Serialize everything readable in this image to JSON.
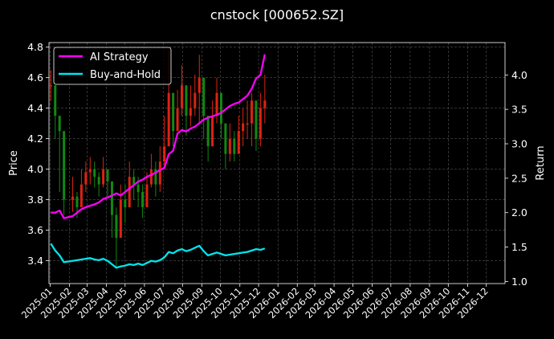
{
  "chart_data": {
    "type": "line",
    "title": "cnstock [000652.SZ]",
    "ylabel_left": "Price",
    "ylabel_right": "Return",
    "x_ticks": [
      "2025-01",
      "2025-02",
      "2025-03",
      "2025-04",
      "2025-05",
      "2025-06",
      "2025-07",
      "2025-08",
      "2025-09",
      "2025-10",
      "2025-11",
      "2025-12",
      "2026-01",
      "2026-02",
      "2026-03",
      "2026-04",
      "2026-05",
      "2026-06",
      "2026-07",
      "2026-08",
      "2026-09",
      "2026-10",
      "2026-11",
      "2026-12"
    ],
    "xlim": [
      "2024-12-30",
      "2026-12-31"
    ],
    "y_left_ticks": [
      3.4,
      3.6,
      3.8,
      4.0,
      4.2,
      4.4,
      4.6,
      4.8
    ],
    "y_left_range": [
      3.25,
      4.83
    ],
    "y_right_ticks": [
      1.0,
      1.5,
      2.0,
      2.5,
      3.0,
      3.5,
      4.0
    ],
    "y_right_range": [
      0.97,
      4.47
    ],
    "grid": true,
    "legend_position": "upper-left",
    "candlestick_colors": {
      "up": "#dd2211",
      "down": "#118811"
    },
    "candlesticks": {
      "dates": [
        "2025-01-02",
        "2025-01-09",
        "2025-01-16",
        "2025-01-23",
        "2025-02-06",
        "2025-02-13",
        "2025-02-20",
        "2025-02-27",
        "2025-03-06",
        "2025-03-13",
        "2025-03-20",
        "2025-03-27",
        "2025-04-03",
        "2025-04-10",
        "2025-04-17",
        "2025-04-24",
        "2025-05-01",
        "2025-05-08",
        "2025-05-15",
        "2025-05-22",
        "2025-05-29",
        "2025-06-05",
        "2025-06-12",
        "2025-06-19",
        "2025-06-26",
        "2025-07-03",
        "2025-07-10",
        "2025-07-17",
        "2025-07-24",
        "2025-07-31",
        "2025-08-07",
        "2025-08-14",
        "2025-08-21",
        "2025-08-28",
        "2025-09-04",
        "2025-09-11",
        "2025-09-18",
        "2025-09-25",
        "2025-10-02",
        "2025-10-09",
        "2025-10-16",
        "2025-10-23",
        "2025-10-30",
        "2025-11-06",
        "2025-11-13",
        "2025-11-20",
        "2025-11-27",
        "2025-12-04",
        "2025-12-11"
      ],
      "close": [
        4.55,
        4.35,
        4.25,
        3.8,
        3.82,
        3.75,
        3.9,
        3.98,
        4.0,
        3.95,
        3.9,
        4.0,
        3.92,
        3.7,
        3.55,
        3.8,
        3.75,
        3.95,
        3.9,
        3.85,
        3.75,
        3.9,
        4.0,
        3.9,
        4.05,
        4.15,
        4.5,
        4.25,
        4.4,
        4.55,
        4.35,
        4.4,
        4.5,
        4.6,
        4.35,
        4.15,
        4.35,
        4.5,
        4.3,
        4.1,
        4.2,
        4.1,
        4.25,
        4.3,
        4.3,
        4.45,
        4.2,
        4.4,
        4.45
      ],
      "high": [
        4.65,
        4.45,
        4.35,
        3.95,
        3.95,
        3.85,
        4.0,
        4.05,
        4.08,
        4.05,
        3.98,
        4.08,
        4.0,
        3.85,
        3.75,
        3.9,
        3.9,
        4.05,
        4.0,
        3.95,
        3.9,
        3.98,
        4.1,
        4.05,
        4.15,
        4.35,
        4.78,
        4.45,
        4.52,
        4.68,
        4.5,
        4.55,
        4.62,
        4.75,
        4.55,
        4.3,
        4.45,
        4.6,
        4.45,
        4.25,
        4.3,
        4.25,
        4.35,
        4.4,
        4.45,
        4.5,
        4.35,
        4.5,
        4.62
      ],
      "low": [
        4.45,
        4.2,
        3.85,
        3.7,
        3.72,
        3.68,
        3.8,
        3.85,
        3.9,
        3.88,
        3.82,
        3.88,
        3.82,
        3.55,
        3.35,
        3.65,
        3.65,
        3.82,
        3.8,
        3.75,
        3.68,
        3.8,
        3.88,
        3.82,
        3.85,
        4.0,
        4.25,
        4.15,
        4.25,
        4.35,
        4.22,
        4.28,
        4.35,
        4.3,
        4.2,
        4.05,
        4.2,
        4.3,
        4.2,
        4.0,
        4.05,
        4.05,
        4.1,
        4.15,
        4.2,
        4.15,
        4.12,
        4.15,
        4.3
      ]
    },
    "series": [
      {
        "name": "AI Strategy",
        "axis": "right",
        "color": "#ff00ff",
        "x": [
          "2025-01-02",
          "2025-01-09",
          "2025-01-16",
          "2025-01-23",
          "2025-02-06",
          "2025-02-13",
          "2025-02-20",
          "2025-02-27",
          "2025-03-06",
          "2025-03-13",
          "2025-03-20",
          "2025-03-27",
          "2025-04-03",
          "2025-04-10",
          "2025-04-17",
          "2025-04-24",
          "2025-05-01",
          "2025-05-08",
          "2025-05-15",
          "2025-05-22",
          "2025-05-29",
          "2025-06-05",
          "2025-06-12",
          "2025-06-19",
          "2025-06-26",
          "2025-07-03",
          "2025-07-10",
          "2025-07-17",
          "2025-07-24",
          "2025-07-31",
          "2025-08-07",
          "2025-08-14",
          "2025-08-21",
          "2025-08-28",
          "2025-09-04",
          "2025-09-11",
          "2025-09-18",
          "2025-09-25",
          "2025-10-02",
          "2025-10-09",
          "2025-10-16",
          "2025-10-23",
          "2025-10-30",
          "2025-11-06",
          "2025-11-13",
          "2025-11-20",
          "2025-11-27",
          "2025-12-04",
          "2025-12-11"
        ],
        "y": [
          2.0,
          2.0,
          2.03,
          1.92,
          1.95,
          2.0,
          2.05,
          2.08,
          2.1,
          2.12,
          2.15,
          2.2,
          2.22,
          2.25,
          2.28,
          2.25,
          2.3,
          2.35,
          2.4,
          2.45,
          2.48,
          2.52,
          2.55,
          2.58,
          2.62,
          2.65,
          2.85,
          2.9,
          3.15,
          3.2,
          3.18,
          3.22,
          3.25,
          3.3,
          3.35,
          3.38,
          3.4,
          3.42,
          3.45,
          3.5,
          3.55,
          3.58,
          3.6,
          3.65,
          3.7,
          3.8,
          3.95,
          4.0,
          4.3
        ]
      },
      {
        "name": "Buy-and-Hold",
        "axis": "right",
        "color": "#00e5ee",
        "x": [
          "2025-01-02",
          "2025-01-09",
          "2025-01-16",
          "2025-01-23",
          "2025-02-06",
          "2025-02-13",
          "2025-02-20",
          "2025-02-27",
          "2025-03-06",
          "2025-03-13",
          "2025-03-20",
          "2025-03-27",
          "2025-04-03",
          "2025-04-10",
          "2025-04-17",
          "2025-04-24",
          "2025-05-01",
          "2025-05-08",
          "2025-05-15",
          "2025-05-22",
          "2025-05-29",
          "2025-06-05",
          "2025-06-12",
          "2025-06-19",
          "2025-06-26",
          "2025-07-03",
          "2025-07-10",
          "2025-07-17",
          "2025-07-24",
          "2025-07-31",
          "2025-08-07",
          "2025-08-14",
          "2025-08-21",
          "2025-08-28",
          "2025-09-04",
          "2025-09-11",
          "2025-09-18",
          "2025-09-25",
          "2025-10-02",
          "2025-10-09",
          "2025-10-16",
          "2025-10-23",
          "2025-10-30",
          "2025-11-06",
          "2025-11-13",
          "2025-11-20",
          "2025-11-27",
          "2025-12-04",
          "2025-12-11"
        ],
        "y": [
          1.55,
          1.45,
          1.38,
          1.28,
          1.3,
          1.31,
          1.32,
          1.33,
          1.34,
          1.32,
          1.31,
          1.33,
          1.3,
          1.25,
          1.2,
          1.22,
          1.23,
          1.25,
          1.24,
          1.26,
          1.24,
          1.27,
          1.3,
          1.29,
          1.31,
          1.35,
          1.43,
          1.41,
          1.45,
          1.47,
          1.44,
          1.46,
          1.49,
          1.52,
          1.44,
          1.38,
          1.4,
          1.42,
          1.4,
          1.38,
          1.39,
          1.4,
          1.41,
          1.42,
          1.43,
          1.45,
          1.47,
          1.46,
          1.48
        ]
      }
    ]
  }
}
